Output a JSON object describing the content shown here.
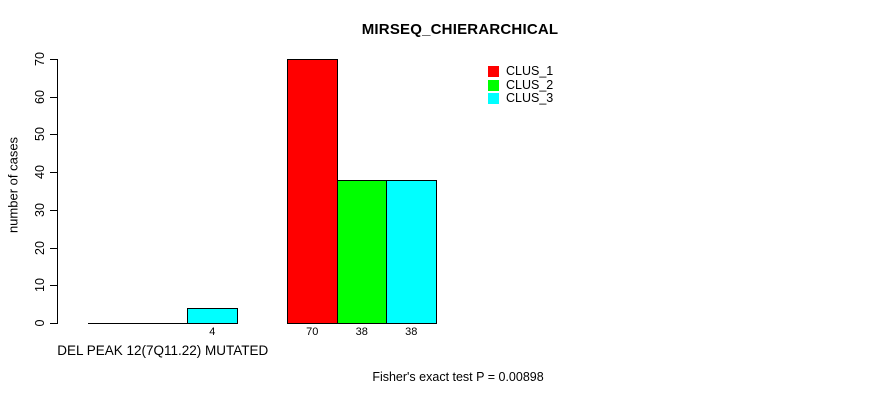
{
  "chart_data": {
    "type": "bar",
    "title": "MIRSEQ_CHIERARCHICAL",
    "ylabel": "number of cases",
    "xlabel": "",
    "ylim": [
      0,
      70
    ],
    "yticks": [
      0,
      10,
      20,
      30,
      40,
      50,
      60,
      70
    ],
    "grid": false,
    "legend_position": "top-right-inside",
    "series": [
      {
        "name": "CLUS_1",
        "color": "#ff0000"
      },
      {
        "name": "CLUS_2",
        "color": "#00ff00"
      },
      {
        "name": "CLUS_3",
        "color": "#00ffff"
      }
    ],
    "groups": [
      {
        "axis_label": "DEL PEAK 12(7Q11.22) MUTATED",
        "values": [
          0,
          0,
          4
        ],
        "value_labels": [
          "",
          "",
          "4"
        ]
      },
      {
        "axis_label": "",
        "values": [
          70,
          38,
          38
        ],
        "value_labels": [
          "70",
          "38",
          "38"
        ]
      }
    ],
    "footer": "Fisher's exact test P = 0.00898",
    "axis_color": "#000000",
    "bar_border_color": "#000000"
  }
}
